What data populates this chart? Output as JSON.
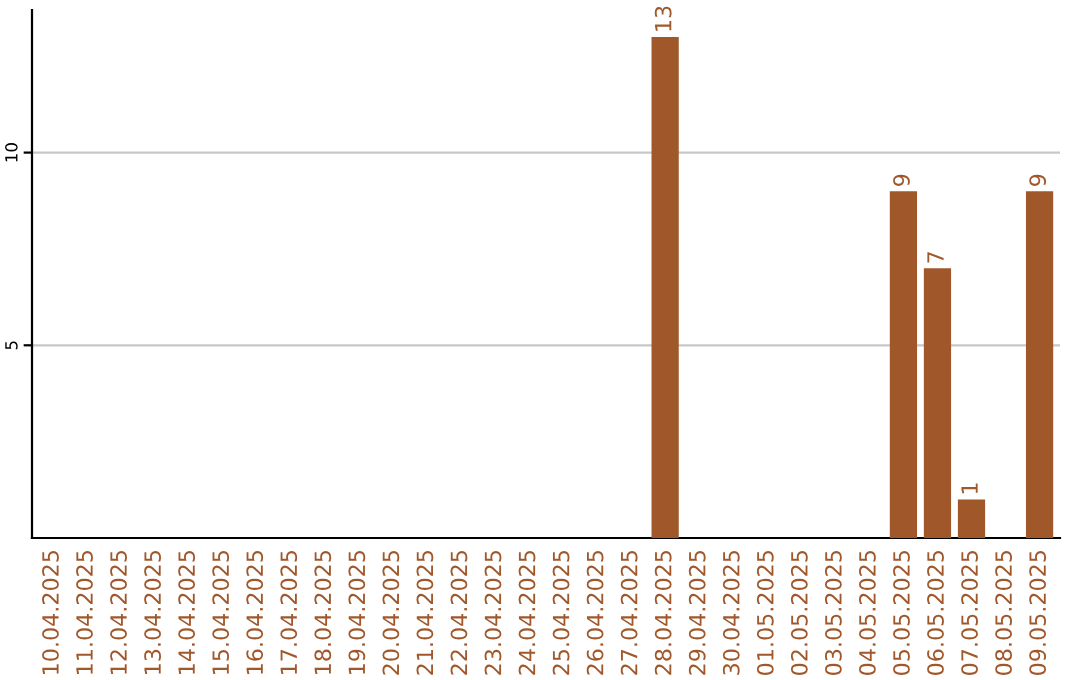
{
  "chart_data": {
    "type": "bar",
    "categories": [
      "10.04.2025",
      "11.04.2025",
      "12.04.2025",
      "13.04.2025",
      "14.04.2025",
      "15.04.2025",
      "16.04.2025",
      "17.04.2025",
      "18.04.2025",
      "19.04.2025",
      "20.04.2025",
      "21.04.2025",
      "22.04.2025",
      "23.04.2025",
      "24.04.2025",
      "25.04.2025",
      "26.04.2025",
      "27.04.2025",
      "28.04.2025",
      "29.04.2025",
      "30.04.2025",
      "01.05.2025",
      "02.05.2025",
      "03.05.2025",
      "04.05.2025",
      "05.05.2025",
      "06.05.2025",
      "07.05.2025",
      "08.05.2025",
      "09.05.2025"
    ],
    "values": [
      0,
      0,
      0,
      0,
      0,
      0,
      0,
      0,
      0,
      0,
      0,
      0,
      0,
      0,
      0,
      0,
      0,
      0,
      13,
      0,
      0,
      0,
      0,
      0,
      0,
      9,
      7,
      1,
      0,
      9
    ],
    "value_labels": [
      null,
      null,
      null,
      null,
      null,
      null,
      null,
      null,
      null,
      null,
      null,
      null,
      null,
      null,
      null,
      null,
      null,
      null,
      "13",
      null,
      null,
      null,
      null,
      null,
      null,
      "9",
      "7",
      "1",
      null,
      "9"
    ],
    "color": "#a0572a",
    "ylim": [
      0,
      13.7
    ],
    "yticks": [
      5,
      10
    ],
    "grid": "y"
  }
}
